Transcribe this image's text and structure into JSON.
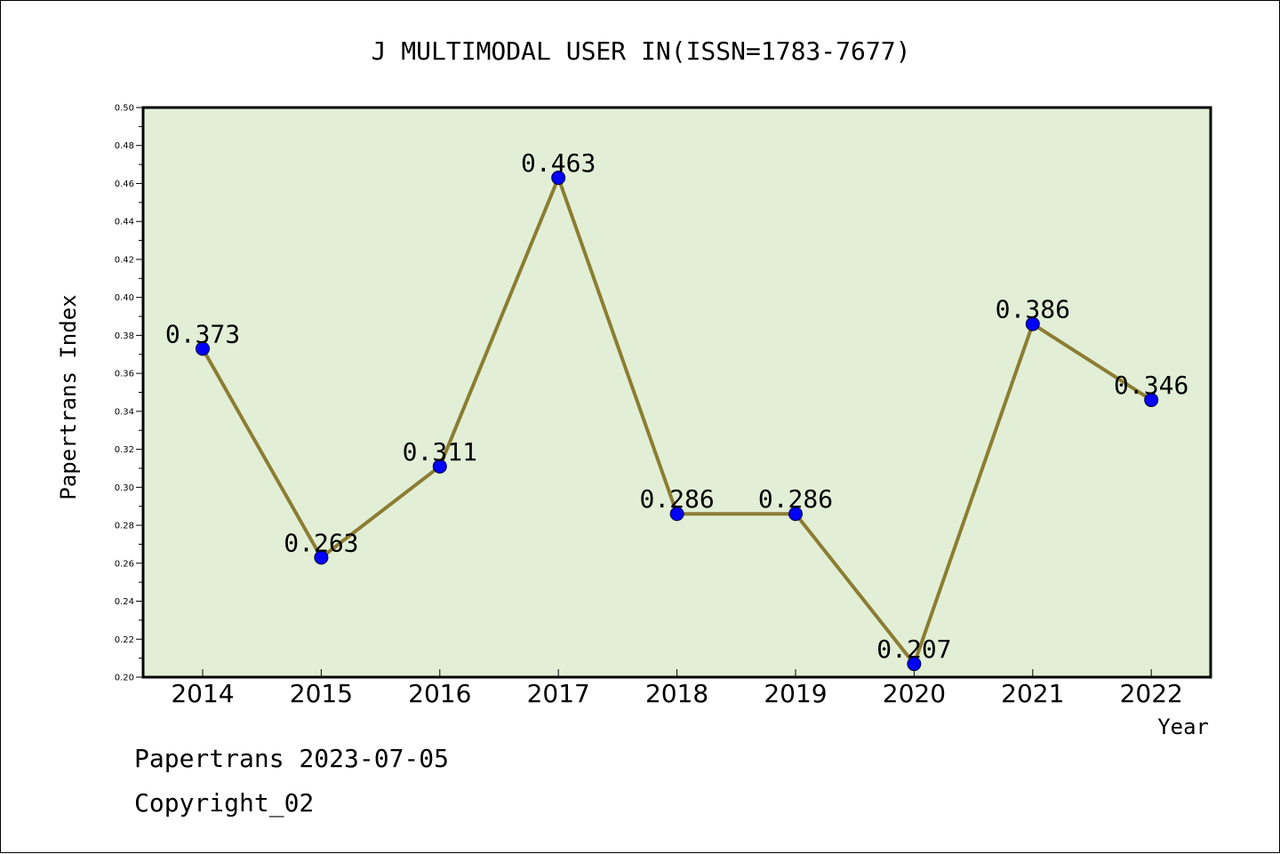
{
  "colors": {
    "plot_background": "#e2efd6",
    "line": "#8b7d32",
    "marker": "#0000ff",
    "axis": "#000000"
  },
  "footer": {
    "date": "Papertrans 2023-07-05",
    "copyright": "Copyright_02"
  },
  "chart_data": {
    "type": "line",
    "title": "J MULTIMODAL USER IN(ISSN=1783-7677)",
    "xlabel": "Year",
    "ylabel": "Papertrans Index",
    "categories": [
      "2014",
      "2015",
      "2016",
      "2017",
      "2018",
      "2019",
      "2020",
      "2021",
      "2022"
    ],
    "series": [
      {
        "values": [
          0.373,
          0.263,
          0.311,
          0.463,
          0.286,
          0.286,
          0.207,
          0.386,
          0.346
        ],
        "labels": [
          "0.373",
          "0.263",
          "0.311",
          "0.463",
          "0.286",
          "0.286",
          "0.207",
          "0.386",
          "0.346"
        ]
      }
    ],
    "ylim": [
      0.2,
      0.5
    ],
    "yticks": [
      0.2,
      0.22,
      0.24,
      0.26,
      0.28,
      0.3,
      0.32,
      0.34,
      0.36,
      0.38,
      0.4,
      0.42,
      0.44,
      0.46,
      0.48,
      0.5
    ],
    "ytick_labels": [
      "0.20",
      "0.22",
      "0.24",
      "0.26",
      "0.28",
      "0.30",
      "0.32",
      "0.34",
      "0.36",
      "0.38",
      "0.40",
      "0.42",
      "0.44",
      "0.46",
      "0.48",
      "0.50"
    ],
    "grid": false,
    "legend": "none"
  }
}
